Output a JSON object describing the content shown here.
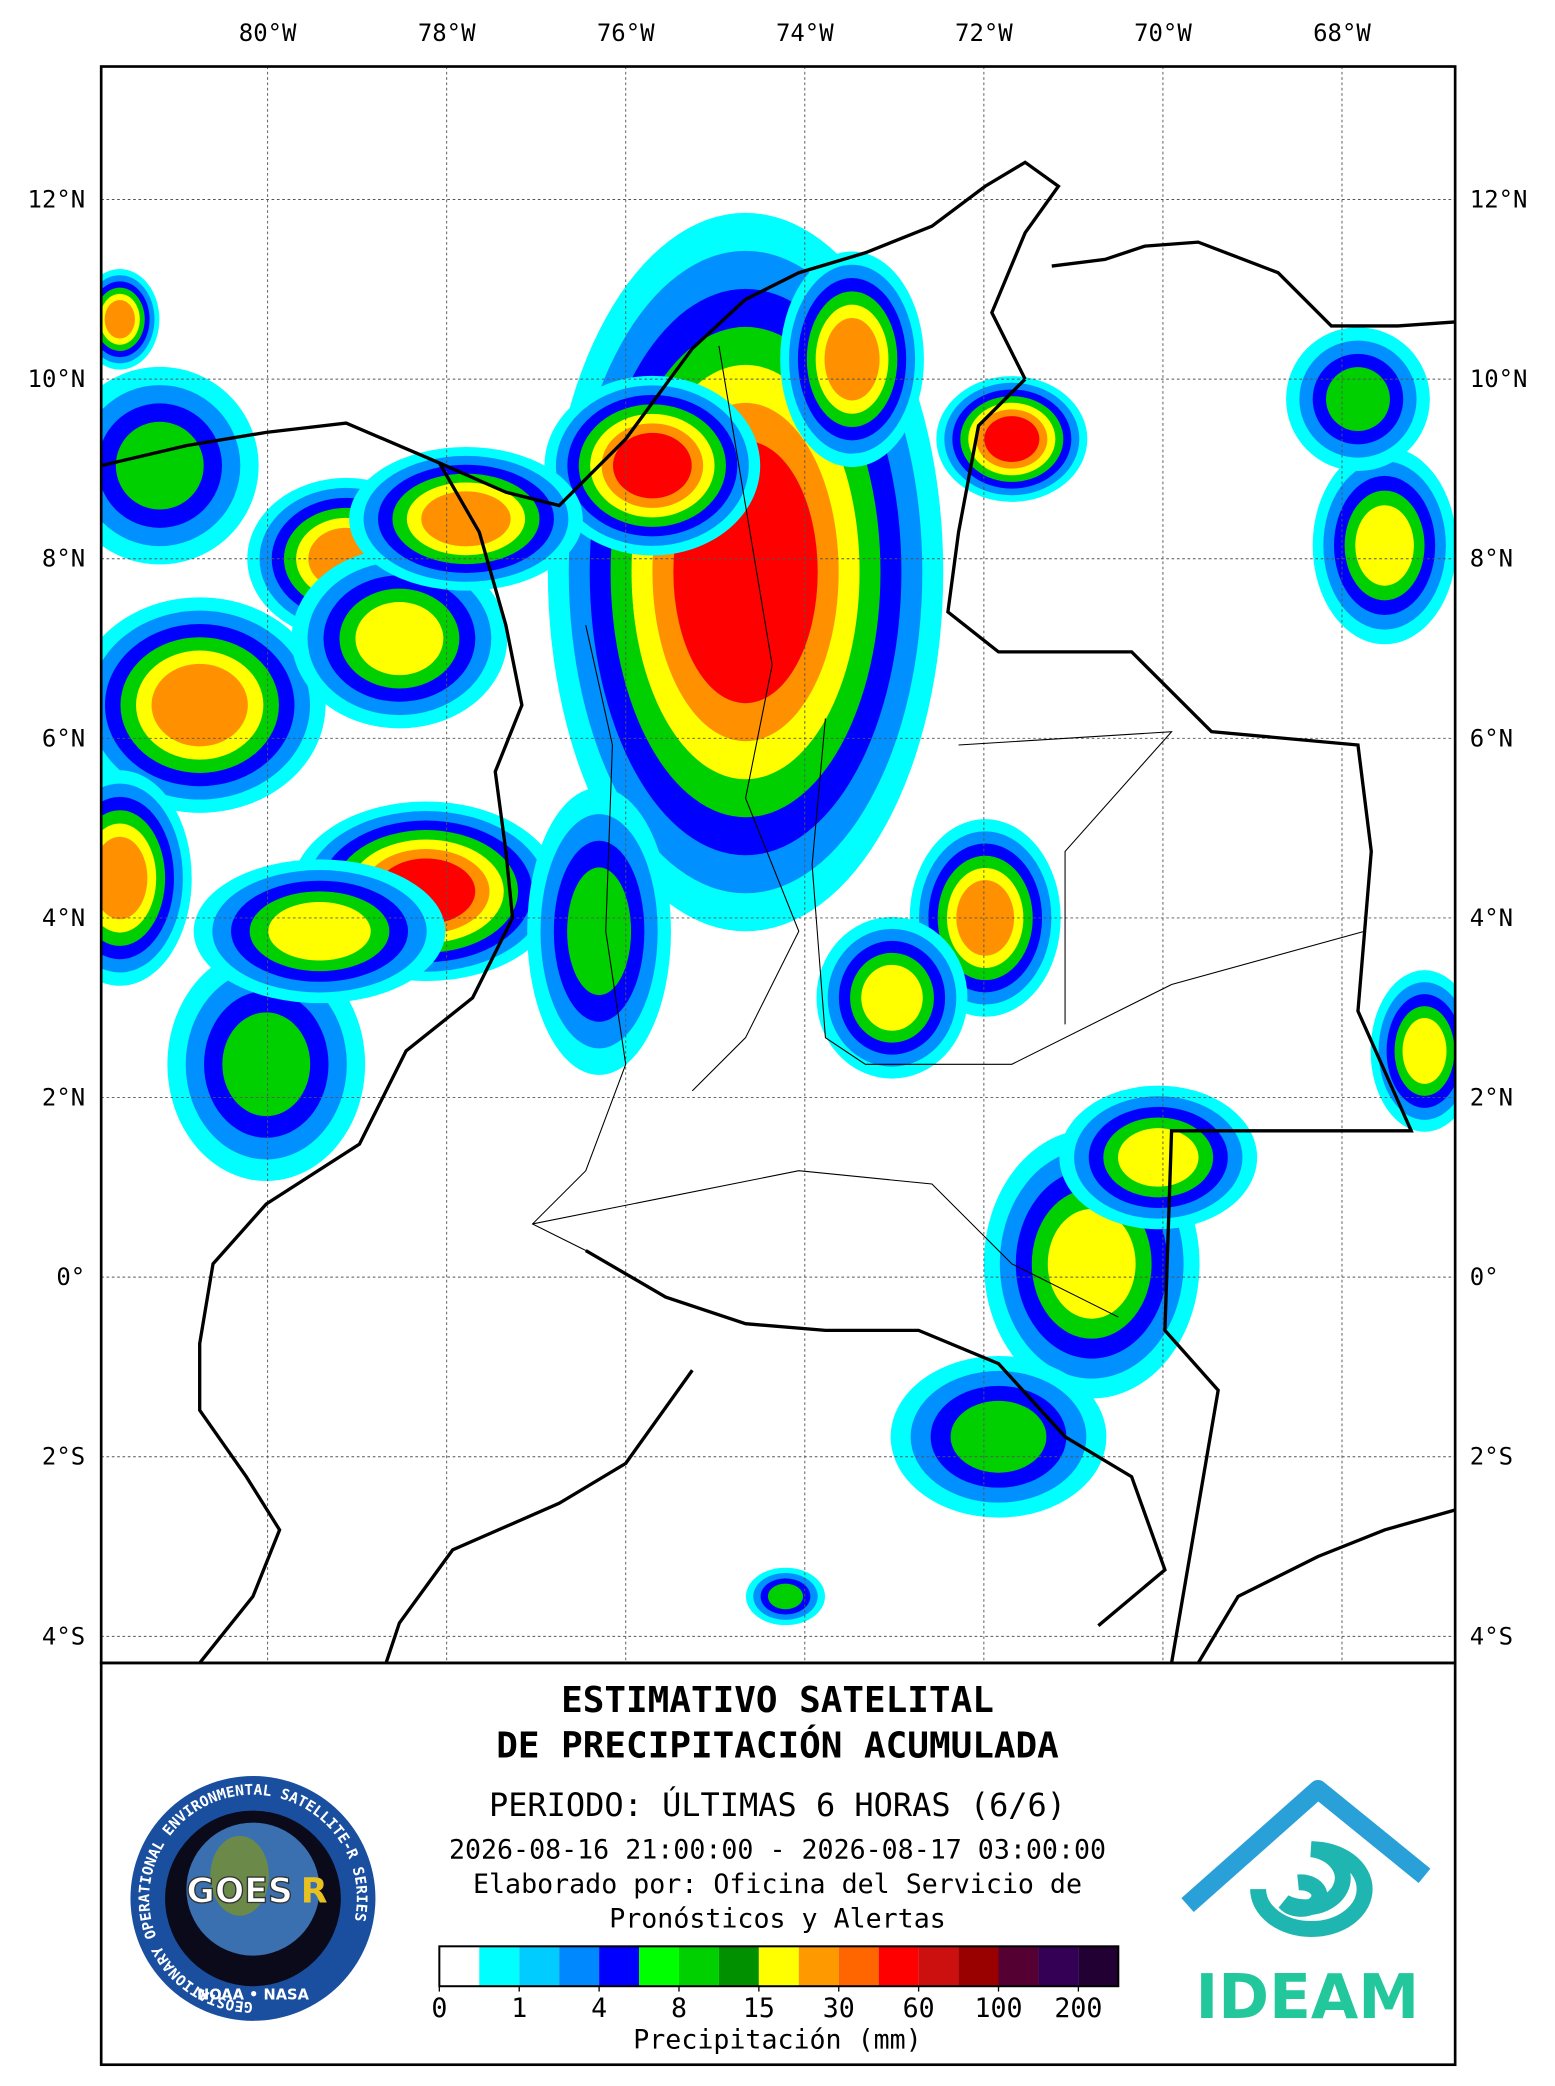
{
  "map": {
    "xlim": [
      -81.859,
      -66.736
    ],
    "ylim": [
      -4.296,
      13.481
    ],
    "xticks": [
      {
        "value": -80,
        "label": "80°W"
      },
      {
        "value": -78,
        "label": "78°W"
      },
      {
        "value": -76,
        "label": "76°W"
      },
      {
        "value": -74,
        "label": "74°W"
      },
      {
        "value": -72,
        "label": "72°W"
      },
      {
        "value": -70,
        "label": "70°W"
      },
      {
        "value": -68,
        "label": "68°W"
      }
    ],
    "yticks": [
      {
        "value": 12,
        "label": "12°N"
      },
      {
        "value": 10,
        "label": "10°N"
      },
      {
        "value": 8,
        "label": "8°N"
      },
      {
        "value": 6,
        "label": "6°N"
      },
      {
        "value": 4,
        "label": "4°N"
      },
      {
        "value": 2,
        "label": "2°N"
      },
      {
        "value": 0,
        "label": "0°"
      },
      {
        "value": -2,
        "label": "2°S"
      },
      {
        "value": -4,
        "label": "4°S"
      }
    ],
    "grid": true
  },
  "title": [
    "ESTIMATIVO SATELITAL",
    "DE PRECIPITACIÓN ACUMULADA"
  ],
  "period": "PERIODO: ÚLTIMAS 6 HORAS (6/6)",
  "range": "2026-08-16 21:00:00 - 2026-08-17 03:00:00",
  "credit": [
    "Elaborado por: Oficina del Servicio de",
    "Pronósticos y Alertas"
  ],
  "colorbar": {
    "colors": [
      "#ffffff",
      "#00ffff",
      "#00ccff",
      "#0088ff",
      "#0000ff",
      "#00ff00",
      "#00d000",
      "#009000",
      "#ffff00",
      "#ff9900",
      "#ff6600",
      "#ff0000",
      "#cc1010",
      "#990000",
      "#550033",
      "#330055",
      "#220033"
    ],
    "ticks": [
      0,
      1,
      4,
      8,
      15,
      30,
      60,
      100,
      200
    ],
    "label": "Precipitación (mm)"
  },
  "logos": {
    "goes": "GOES",
    "goes_r": "R",
    "goes_ring": "GEOSTATIONARY OPERATIONAL ENVIRONMENTAL SATELLITE-R SERIES",
    "goes_agencies": "NOAA • NASA",
    "ideam": "IDEAM"
  }
}
